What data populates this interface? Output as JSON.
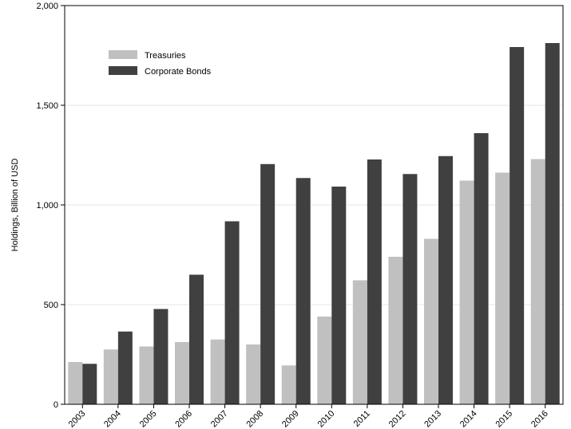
{
  "chart_data": {
    "type": "bar",
    "categories": [
      "2003",
      "2004",
      "2005",
      "2006",
      "2007",
      "2008",
      "2009",
      "2010",
      "2011",
      "2012",
      "2013",
      "2014",
      "2015",
      "2016"
    ],
    "series": [
      {
        "name": "Treasuries",
        "color": "#c0c0c0",
        "values": [
          212,
          275,
          290,
          312,
          325,
          300,
          195,
          440,
          622,
          740,
          830,
          1122,
          1162,
          1230
        ]
      },
      {
        "name": "Corporate Bonds",
        "color": "#404040",
        "values": [
          203,
          365,
          478,
          650,
          918,
          1205,
          1135,
          1092,
          1228,
          1155,
          1245,
          1360,
          1792,
          1812
        ]
      }
    ],
    "ylabel": "Holdings, Billion of USD",
    "xlabel": "",
    "ylim": [
      0,
      2000
    ],
    "yticks": [
      0,
      500,
      1000,
      1500,
      2000
    ],
    "ytick_labels": [
      "0",
      "500",
      "1,000",
      "1,500",
      "2,000"
    ],
    "grid": true,
    "legend_position": "top-left"
  }
}
